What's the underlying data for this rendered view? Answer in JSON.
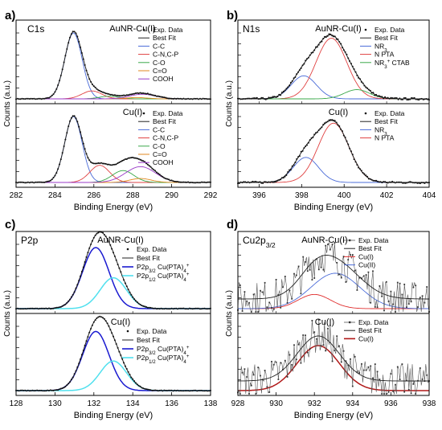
{
  "panels": {
    "a": {
      "letter": "a)",
      "title": "C1s",
      "xlabel": "Binding Energy (eV)",
      "ylabel": "Counts (a.u.)"
    },
    "b": {
      "letter": "b)",
      "title": "N1s",
      "xlabel": "Binding Energy (eV)",
      "ylabel": "Counts (a.u.)"
    },
    "c": {
      "letter": "c)",
      "title": "P2p",
      "xlabel": "Binding Energy (eV)",
      "ylabel": "Counts (a.u.)"
    },
    "d": {
      "letter": "d)",
      "title": "Cu2p3/2",
      "xlabel": "Binding Energy (eV)",
      "ylabel": "Counts (a.u.)"
    }
  },
  "chart_data": [
    {
      "panel": "a",
      "type": "line",
      "title": "C1s",
      "xlabel": "Binding Energy (eV)",
      "ylabel": "Counts (a.u.)",
      "xlim": [
        282,
        292
      ],
      "xticks": [
        282,
        284,
        286,
        288,
        290,
        292
      ],
      "x_reversed": false,
      "colors": {
        "exp": "#222222",
        "fit": "#222222",
        "C-C": "#4a6bd8",
        "C-N,C-P": "#e04040",
        "C-O": "#3aa84a",
        "C=O": "#e08a20",
        "COOH": "#9a3ac8"
      },
      "subplots": [
        {
          "label": "AuNR-Cu(I)",
          "legend": [
            "Exp. Data",
            "Best Fit",
            "C-C",
            "C-N,C-P",
            "C-O",
            "C=O",
            "COOH"
          ],
          "components": [
            {
              "name": "C-C",
              "center": 284.95,
              "height": 1.0,
              "fwhm": 1.05
            },
            {
              "name": "C-N,C-P",
              "center": 285.9,
              "height": 0.12,
              "fwhm": 1.2
            },
            {
              "name": "C-O",
              "center": 286.8,
              "height": 0.04,
              "fwhm": 1.2
            },
            {
              "name": "C=O",
              "center": 288.2,
              "height": 0.02,
              "fwhm": 1.3
            },
            {
              "name": "COOH",
              "center": 288.5,
              "height": 0.07,
              "fwhm": 1.6
            }
          ]
        },
        {
          "label": "Cu(I)",
          "legend": [
            "Exp. Data",
            "Best Fit",
            "C-C",
            "C-N,C-P",
            "C-O",
            "C=O",
            "COOH"
          ],
          "components": [
            {
              "name": "C-C",
              "center": 284.95,
              "height": 1.0,
              "fwhm": 1.05
            },
            {
              "name": "C-N,C-P",
              "center": 286.3,
              "height": 0.26,
              "fwhm": 1.2
            },
            {
              "name": "C-O",
              "center": 287.5,
              "height": 0.18,
              "fwhm": 1.3
            },
            {
              "name": "C=O",
              "center": 288.4,
              "height": 0.06,
              "fwhm": 1.3
            },
            {
              "name": "COOH",
              "center": 288.4,
              "height": 0.24,
              "fwhm": 1.8
            }
          ]
        }
      ]
    },
    {
      "panel": "b",
      "type": "line",
      "title": "N1s",
      "xlabel": "Binding Energy (eV)",
      "ylabel": "Counts (a.u.)",
      "xlim": [
        395,
        404
      ],
      "xticks": [
        396,
        398,
        400,
        402,
        404
      ],
      "x_reversed": false,
      "colors": {
        "exp": "#222222",
        "fit": "#222222",
        "NR3": "#4a6bd8",
        "N PTA": "#e04040",
        "NR3+ CTAB": "#3aa84a"
      },
      "subplots": [
        {
          "label": "AuNR-Cu(I)",
          "legend": [
            "Exp. Data",
            "Best Fit",
            "NR3",
            "N PTA",
            "NR3+ CTAB"
          ],
          "components": [
            {
              "name": "NR3",
              "center": 398.1,
              "height": 0.35,
              "fwhm": 1.4
            },
            {
              "name": "N PTA",
              "center": 399.4,
              "height": 0.92,
              "fwhm": 1.7
            },
            {
              "name": "NR3+ CTAB",
              "center": 400.6,
              "height": 0.14,
              "fwhm": 1.4
            }
          ]
        },
        {
          "label": "Cu(I)",
          "legend": [
            "Exp. Data",
            "Best Fit",
            "NR3",
            "N PTA"
          ],
          "components": [
            {
              "name": "NR3",
              "center": 398.2,
              "height": 0.38,
              "fwhm": 1.4
            },
            {
              "name": "N PTA",
              "center": 399.5,
              "height": 0.9,
              "fwhm": 1.7
            }
          ]
        }
      ]
    },
    {
      "panel": "c",
      "type": "line",
      "title": "P2p",
      "xlabel": "Binding Energy (eV)",
      "ylabel": "Counts (a.u.)",
      "xlim": [
        128,
        138
      ],
      "xticks": [
        128,
        130,
        132,
        134,
        136,
        138
      ],
      "x_reversed": false,
      "colors": {
        "exp": "#222222",
        "fit": "#222222",
        "P2p3/2": "#1a1ad0",
        "P2p1/2": "#50e0ee"
      },
      "subplots": [
        {
          "label": "AuNR-Cu(I)",
          "legend": [
            "Exp. Data",
            "Best Fit",
            "P2p3/2 Cu(PTA)4+",
            "P2p1/2 Cu(PTA)4+"
          ],
          "components": [
            {
              "name": "P2p3/2",
              "center": 132.1,
              "height": 0.95,
              "fwhm": 1.6
            },
            {
              "name": "P2p1/2",
              "center": 133.0,
              "height": 0.48,
              "fwhm": 1.6
            }
          ]
        },
        {
          "label": "Cu(I)",
          "legend": [
            "Exp. Data",
            "Best Fit",
            "P2p3/2 Cu(PTA)4+",
            "P2p1/2 Cu(PTA)4+"
          ],
          "components": [
            {
              "name": "P2p3/2",
              "center": 132.1,
              "height": 0.92,
              "fwhm": 1.6
            },
            {
              "name": "P2p1/2",
              "center": 133.0,
              "height": 0.46,
              "fwhm": 1.6
            }
          ]
        }
      ]
    },
    {
      "panel": "d",
      "type": "line",
      "title": "Cu2p3/2",
      "xlabel": "Binding Energy (eV)",
      "ylabel": "Counts (a.u.)",
      "xlim": [
        928,
        938
      ],
      "xticks": [
        928,
        930,
        932,
        934,
        936,
        938
      ],
      "x_reversed": false,
      "colors": {
        "exp": "#333333",
        "fit": "#222222",
        "Cu(I)": "#e03030",
        "Cu(II)": "#4a6bd8",
        "Cu(I)-only": "#b01818"
      },
      "subplots": [
        {
          "label": "AuNR-Cu(I)",
          "legend": [
            "Exp. Data",
            "Best Fit",
            "Cu(I)",
            "Cu(II)"
          ],
          "components": [
            {
              "name": "Cu(I)",
              "center": 932.0,
              "height": 0.22,
              "fwhm": 2.0
            },
            {
              "name": "Cu(II)",
              "center": 933.1,
              "height": 0.55,
              "fwhm": 3.0
            }
          ]
        },
        {
          "label": "Cu(I)",
          "legend": [
            "Exp. Data",
            "Best Fit",
            "Cu(I)"
          ],
          "components": [
            {
              "name": "Cu(I)",
              "center": 932.2,
              "height": 0.7,
              "fwhm": 2.6
            }
          ]
        }
      ]
    }
  ]
}
